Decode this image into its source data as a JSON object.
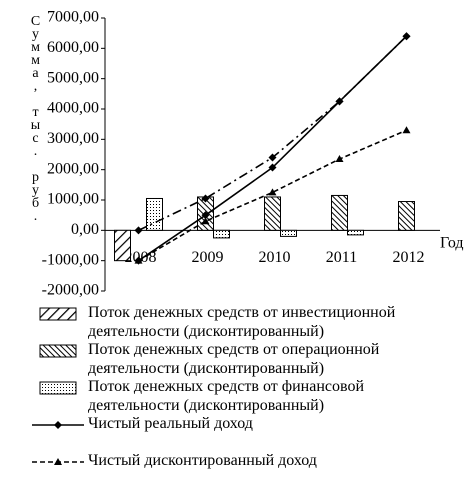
{
  "chart_data": {
    "type": "bar",
    "y_axis_label": "Сумма, тыс. руб.",
    "x_axis_label": "Год",
    "categories": [
      "2008",
      "2009",
      "2010",
      "2011",
      "2012"
    ],
    "ylim": [
      -2000,
      7000
    ],
    "yticks": [
      {
        "value": -2000,
        "label": "-2000,00"
      },
      {
        "value": -1000,
        "label": "-1000,00"
      },
      {
        "value": 0,
        "label": "0,00"
      },
      {
        "value": 1000,
        "label": "1000,00"
      },
      {
        "value": 2000,
        "label": "2000,00"
      },
      {
        "value": 3000,
        "label": "3000,00"
      },
      {
        "value": 4000,
        "label": "4000,00"
      },
      {
        "value": 5000,
        "label": "5000,00"
      },
      {
        "value": 6000,
        "label": "6000,00"
      },
      {
        "value": 7000,
        "label": "7000,00"
      }
    ],
    "series": [
      {
        "name": "Поток денежных средств от инвестиционной деятельности (дисконтированный)",
        "type": "bar",
        "pattern": "wide-hatch",
        "color": "#000000",
        "values": [
          -1000,
          null,
          null,
          null,
          null
        ]
      },
      {
        "name": "Поток денежных средств от операционной деятельности (дисконтированный)",
        "type": "bar",
        "pattern": "dense-hatch",
        "color": "#000000",
        "values": [
          null,
          1100,
          1100,
          1150,
          950
        ]
      },
      {
        "name": "Поток денежных средств от финансовой деятельности (дисконтированный)",
        "type": "bar",
        "pattern": "dots",
        "color": "#000000",
        "values": [
          1050,
          -250,
          -200,
          -150,
          null
        ]
      },
      {
        "name": "Чистый реальный доход",
        "type": "line",
        "line_style": "solid",
        "marker": "diamond",
        "color": "#000000",
        "values": [
          -1000,
          500,
          2070,
          4250,
          6400
        ]
      },
      {
        "name": "Чистый дисконтированный доход",
        "type": "line",
        "line_style": "dashed",
        "marker": "triangle",
        "color": "#000000",
        "values": [
          -1000,
          300,
          1250,
          2350,
          3300
        ]
      },
      {
        "type": "line",
        "line_style": "dash-dot",
        "marker": "diamond",
        "color": "#000000",
        "values": [
          0,
          1050,
          2400,
          4250,
          6400
        ]
      }
    ]
  }
}
